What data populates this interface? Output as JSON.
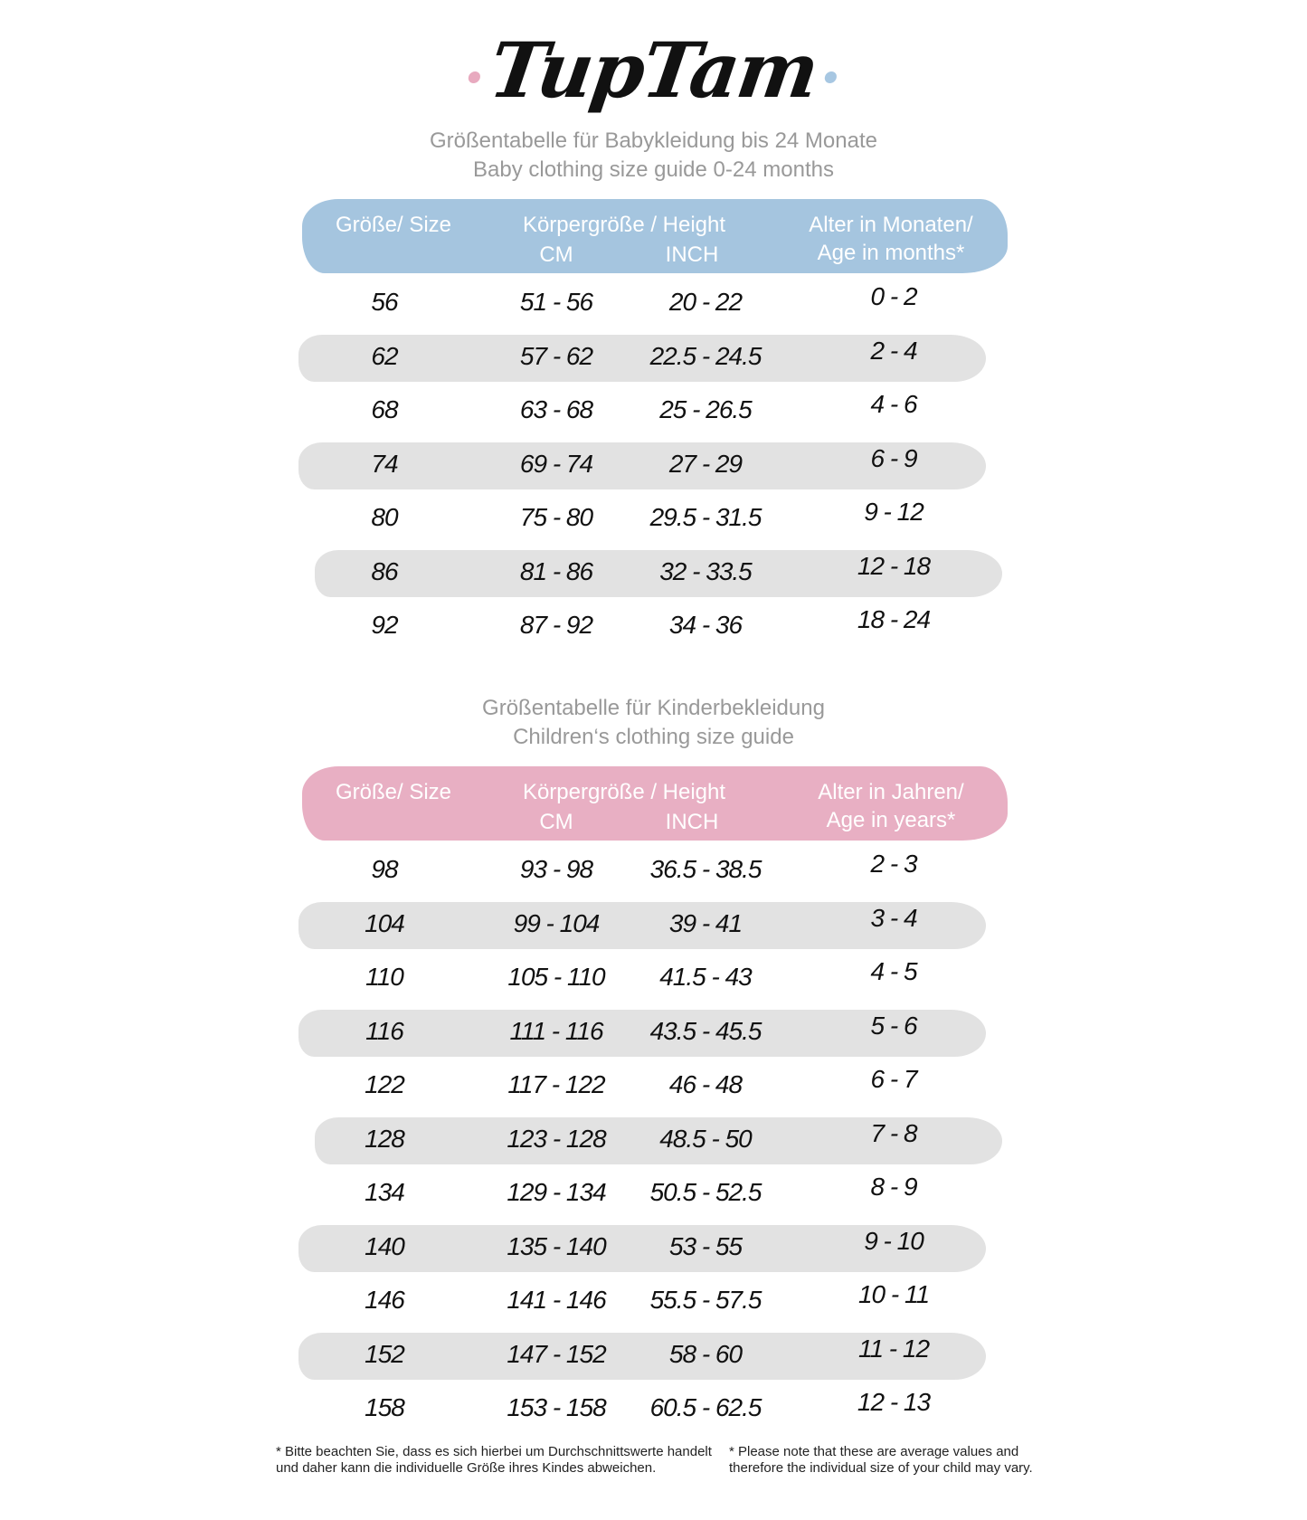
{
  "logo": {
    "text": "TupTam",
    "dot_left_color": "#e8aabf",
    "dot_right_color": "#a7c7e2"
  },
  "baby": {
    "title_de": "Größentabelle für Babykleidung bis 24 Monate",
    "title_en": "Baby clothing size guide 0-24 months",
    "header_color": "#a5c5df",
    "headers": {
      "size": "Größe/ Size",
      "height": "Körpergröße / Height",
      "cm": "CM",
      "inch": "INCH",
      "age1": "Alter in Monaten/",
      "age2": "Age in months*"
    },
    "rows": [
      {
        "size": "56",
        "cm": "51 - 56",
        "inch": "20 - 22",
        "age": "0 - 2"
      },
      {
        "size": "62",
        "cm": "57 - 62",
        "inch": "22.5 - 24.5",
        "age": "2 - 4"
      },
      {
        "size": "68",
        "cm": "63 - 68",
        "inch": "25 - 26.5",
        "age": "4 - 6"
      },
      {
        "size": "74",
        "cm": "69 - 74",
        "inch": "27 - 29",
        "age": "6 - 9"
      },
      {
        "size": "80",
        "cm": "75 - 80",
        "inch": "29.5 - 31.5",
        "age": "9 - 12"
      },
      {
        "size": "86",
        "cm": "81 - 86",
        "inch": "32 - 33.5",
        "age": "12 - 18"
      },
      {
        "size": "92",
        "cm": "87 - 92",
        "inch": "34 - 36",
        "age": "18 - 24"
      }
    ]
  },
  "kids": {
    "title_de": "Größentabelle für Kinderbekleidung",
    "title_en": "Children‘s clothing size guide",
    "header_color": "#e8afc3",
    "headers": {
      "size": "Größe/ Size",
      "height": "Körpergröße / Height",
      "cm": "CM",
      "inch": "INCH",
      "age1": "Alter in Jahren/",
      "age2": "Age in years*"
    },
    "rows": [
      {
        "size": "98",
        "cm": "93 - 98",
        "inch": "36.5 - 38.5",
        "age": "2 - 3"
      },
      {
        "size": "104",
        "cm": "99 - 104",
        "inch": "39 - 41",
        "age": "3 - 4"
      },
      {
        "size": "110",
        "cm": "105 - 110",
        "inch": "41.5 - 43",
        "age": "4 - 5"
      },
      {
        "size": "116",
        "cm": "111 - 116",
        "inch": "43.5 - 45.5",
        "age": "5 - 6"
      },
      {
        "size": "122",
        "cm": "117 - 122",
        "inch": "46 - 48",
        "age": "6 - 7"
      },
      {
        "size": "128",
        "cm": "123 - 128",
        "inch": "48.5 - 50",
        "age": "7 - 8"
      },
      {
        "size": "134",
        "cm": "129 - 134",
        "inch": "50.5 - 52.5",
        "age": "8 - 9"
      },
      {
        "size": "140",
        "cm": "135 - 140",
        "inch": "53 - 55",
        "age": "9 - 10"
      },
      {
        "size": "146",
        "cm": "141 - 146",
        "inch": "55.5 - 57.5",
        "age": "10 - 11"
      },
      {
        "size": "152",
        "cm": "147 - 152",
        "inch": "58 - 60",
        "age": "11 - 12"
      },
      {
        "size": "158",
        "cm": "153 - 158",
        "inch": "60.5 - 62.5",
        "age": "12 - 13"
      }
    ]
  },
  "notes": {
    "de": "* Bitte beachten Sie, dass es sich hierbei um Durchschnittswerte handelt und daher kann die individuelle Größe ihres Kindes abweichen.",
    "en": "* Please note that these are average values and therefore the individual size of your child may vary."
  }
}
